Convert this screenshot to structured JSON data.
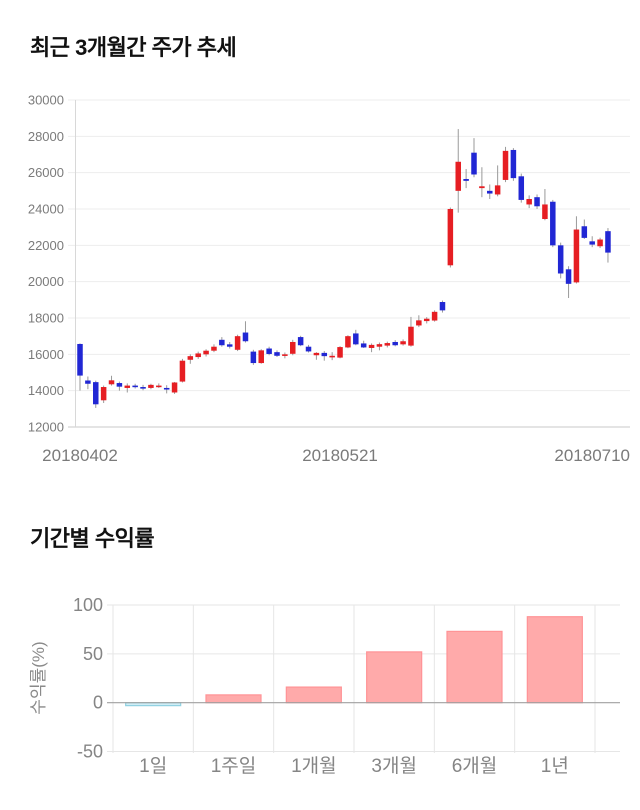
{
  "titles": {
    "price_chart": "최근 3개월간 주가 추세",
    "returns_chart": "기간별 수익률"
  },
  "chart_data": [
    {
      "type": "candlestick",
      "title": "최근 3개월간 주가 추세",
      "ylim": [
        12000,
        30000
      ],
      "y_ticks": [
        30000,
        28000,
        26000,
        24000,
        22000,
        20000,
        18000,
        16000,
        14000,
        12000
      ],
      "x_tick_labels": [
        "20180402",
        "20180521",
        "20180710"
      ],
      "x_tick_positions": [
        0,
        33,
        65
      ],
      "grid": true,
      "up_color": "#e61e23",
      "down_color": "#2127d4",
      "wick_color": "#9a9a9a",
      "candles_ohlc": [
        [
          16570,
          16600,
          14000,
          14830
        ],
        [
          14560,
          14780,
          14080,
          14380
        ],
        [
          14470,
          14550,
          13050,
          13250
        ],
        [
          13470,
          14280,
          13320,
          14200
        ],
        [
          14350,
          14820,
          14280,
          14570
        ],
        [
          14420,
          14500,
          14000,
          14220
        ],
        [
          14150,
          14400,
          13900,
          14280
        ],
        [
          14280,
          14380,
          14120,
          14200
        ],
        [
          14200,
          14320,
          14020,
          14150
        ],
        [
          14150,
          14380,
          14080,
          14320
        ],
        [
          14200,
          14400,
          14150,
          14280
        ],
        [
          14150,
          14300,
          13850,
          14100
        ],
        [
          13900,
          14480,
          13820,
          14450
        ],
        [
          14500,
          15750,
          14450,
          15650
        ],
        [
          15700,
          16000,
          15480,
          15900
        ],
        [
          15850,
          16150,
          15750,
          16050
        ],
        [
          16000,
          16280,
          15880,
          16200
        ],
        [
          16200,
          16550,
          16120,
          16420
        ],
        [
          16800,
          16950,
          16420,
          16500
        ],
        [
          16550,
          16680,
          16320,
          16420
        ],
        [
          16250,
          17080,
          16180,
          17000
        ],
        [
          17200,
          17820,
          16650,
          16720
        ],
        [
          16150,
          16250,
          15420,
          15520
        ],
        [
          15520,
          16280,
          15480,
          16220
        ],
        [
          16320,
          16420,
          15950,
          16020
        ],
        [
          16120,
          16220,
          15850,
          15920
        ],
        [
          15950,
          16100,
          15780,
          16000
        ],
        [
          16030,
          16800,
          15950,
          16680
        ],
        [
          16950,
          17020,
          16450,
          16500
        ],
        [
          16420,
          16520,
          16100,
          16160
        ],
        [
          15950,
          16120,
          15700,
          16080
        ],
        [
          16080,
          16180,
          15650,
          15900
        ],
        [
          15880,
          16120,
          15680,
          15920
        ],
        [
          15820,
          16450,
          15780,
          16400
        ],
        [
          16380,
          17050,
          16340,
          17000
        ],
        [
          17150,
          17350,
          16500,
          16550
        ],
        [
          16600,
          16750,
          16350,
          16380
        ],
        [
          16350,
          16600,
          16120,
          16520
        ],
        [
          16420,
          16650,
          16220,
          16560
        ],
        [
          16480,
          16700,
          16380,
          16620
        ],
        [
          16680,
          16780,
          16440,
          16500
        ],
        [
          16550,
          16820,
          16480,
          16720
        ],
        [
          16480,
          18060,
          16420,
          17520
        ],
        [
          17590,
          18150,
          17500,
          17870
        ],
        [
          17830,
          18050,
          17700,
          17960
        ],
        [
          17860,
          18420,
          17800,
          18340
        ],
        [
          18880,
          18960,
          18300,
          18420
        ],
        [
          20900,
          24080,
          20780,
          24000
        ],
        [
          25000,
          28400,
          23800,
          26600
        ],
        [
          25650,
          26200,
          25150,
          25550
        ],
        [
          27100,
          27900,
          25750,
          25900
        ],
        [
          25150,
          26300,
          24650,
          25250
        ],
        [
          25000,
          25350,
          24550,
          24850
        ],
        [
          24800,
          26400,
          24700,
          25300
        ],
        [
          25600,
          27420,
          25480,
          27200
        ],
        [
          27250,
          27350,
          25550,
          25700
        ],
        [
          25800,
          25950,
          24350,
          24500
        ],
        [
          24250,
          24750,
          24050,
          24550
        ],
        [
          24650,
          24800,
          24000,
          24150
        ],
        [
          23450,
          25100,
          23380,
          24250
        ],
        [
          24400,
          24500,
          21900,
          22000
        ],
        [
          22000,
          22150,
          20180,
          20450
        ],
        [
          20680,
          20850,
          19100,
          19880
        ],
        [
          19960,
          23600,
          19900,
          22870
        ],
        [
          23050,
          23420,
          22350,
          22410
        ],
        [
          22220,
          22500,
          21900,
          22040
        ],
        [
          21950,
          22420,
          21850,
          22320
        ],
        [
          22780,
          22950,
          21050,
          21600
        ]
      ]
    },
    {
      "type": "bar",
      "title": "기간별 수익률",
      "ylabel": "수익률(%)",
      "categories": [
        "1일",
        "1주일",
        "1개월",
        "3개월",
        "6개월",
        "1년"
      ],
      "values": [
        -3,
        8,
        16,
        52,
        73,
        88
      ],
      "y_ticks": [
        100,
        50,
        0,
        -50
      ],
      "ylim": [
        -50,
        100
      ],
      "grid": true,
      "positive_fill": "#ffaaaa",
      "positive_border": "#ff9396",
      "negative_fill": "#cfedf6",
      "negative_border": "#90d2e2"
    }
  ]
}
